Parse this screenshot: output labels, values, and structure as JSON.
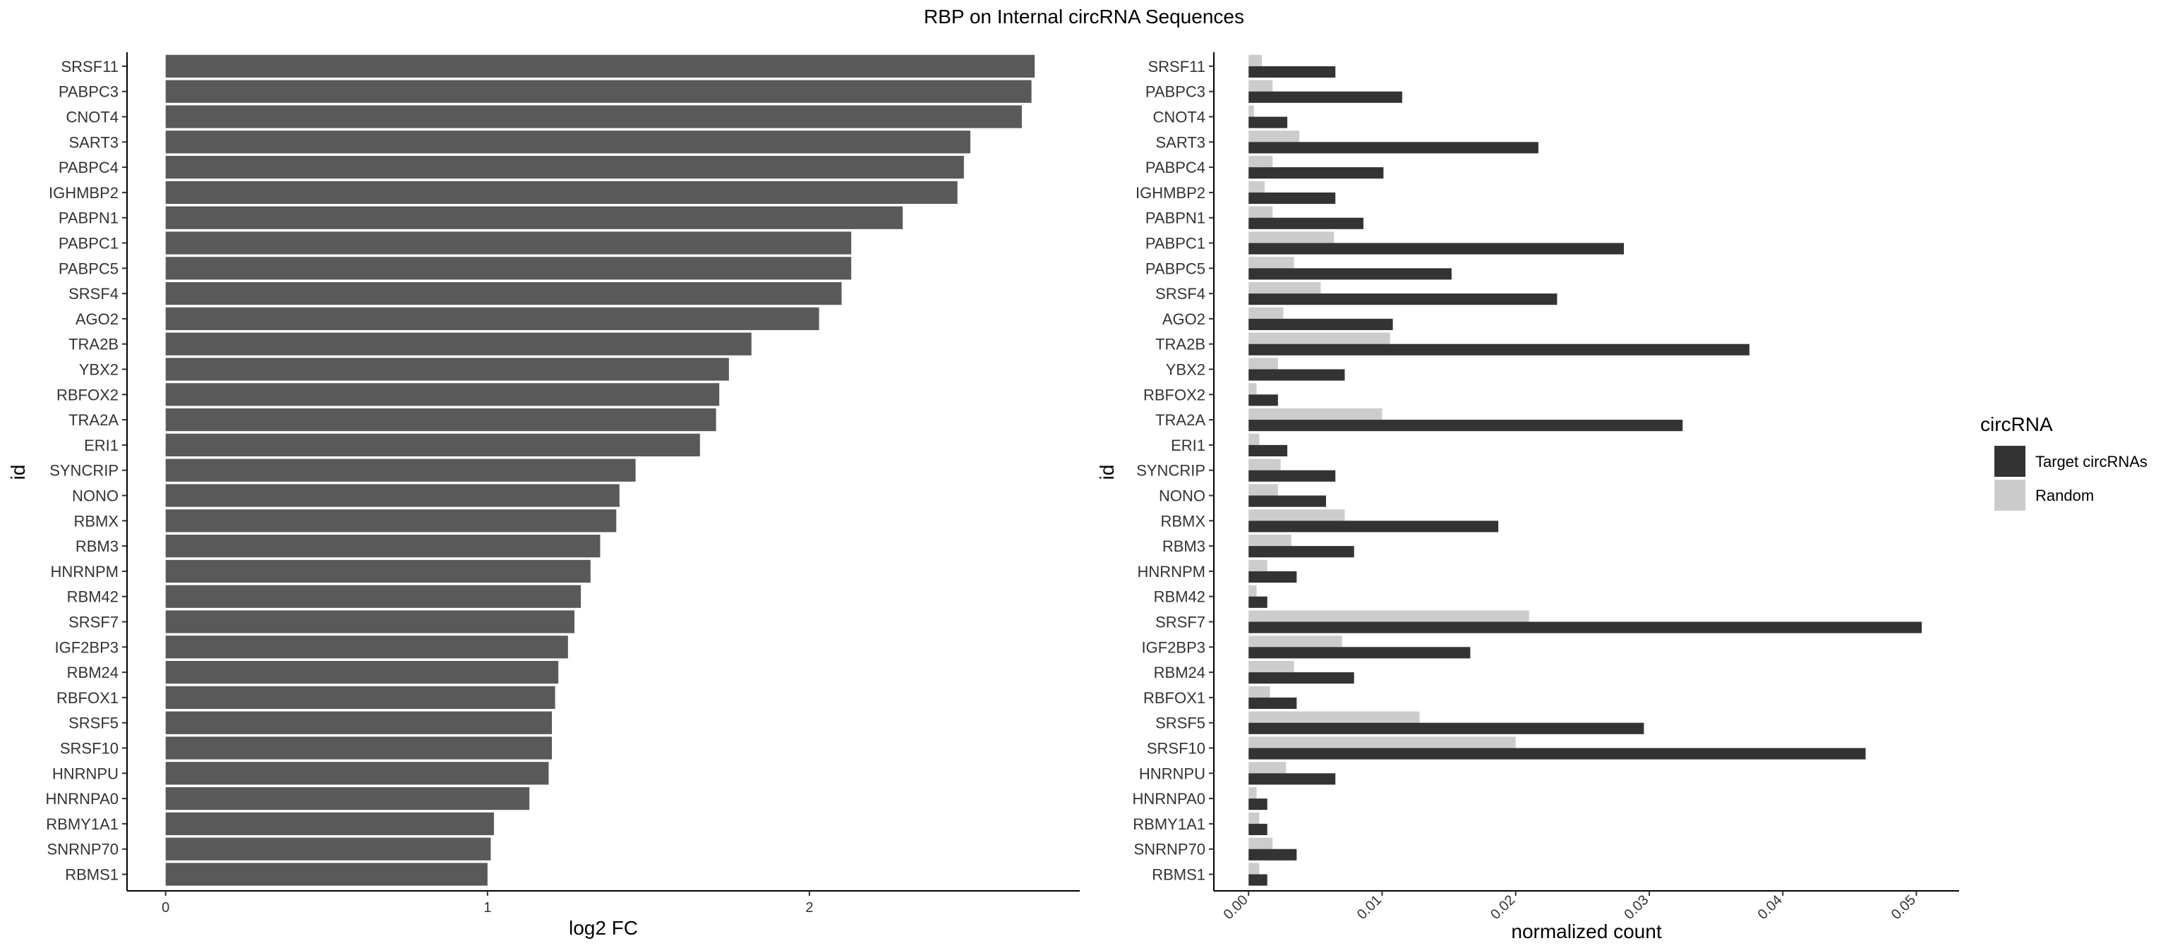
{
  "title": "RBP on Internal circRNA Sequences",
  "chart_data": [
    {
      "type": "bar",
      "orientation": "horizontal",
      "xlabel": "log2 FC",
      "ylabel": "id",
      "xlim": [
        -0.12,
        2.84
      ],
      "xticks": [
        "0",
        "1",
        "2"
      ],
      "bar_color": "#595959",
      "categories": [
        "SRSF11",
        "PABPC3",
        "CNOT4",
        "SART3",
        "PABPC4",
        "IGHMBP2",
        "PABPN1",
        "PABPC1",
        "PABPC5",
        "SRSF4",
        "AGO2",
        "TRA2B",
        "YBX2",
        "RBFOX2",
        "TRA2A",
        "ERI1",
        "SYNCRIP",
        "NONO",
        "RBMX",
        "RBM3",
        "HNRNPM",
        "RBM42",
        "SRSF7",
        "IGF2BP3",
        "RBM24",
        "RBFOX1",
        "SRSF5",
        "SRSF10",
        "HNRNPU",
        "HNRNPA0",
        "RBMY1A1",
        "SNRNP70",
        "RBMS1"
      ],
      "values": [
        2.7,
        2.69,
        2.66,
        2.5,
        2.48,
        2.46,
        2.29,
        2.13,
        2.13,
        2.1,
        2.03,
        1.82,
        1.75,
        1.72,
        1.71,
        1.66,
        1.46,
        1.41,
        1.4,
        1.35,
        1.32,
        1.29,
        1.27,
        1.25,
        1.22,
        1.21,
        1.2,
        1.2,
        1.19,
        1.13,
        1.02,
        1.01,
        1.0
      ]
    },
    {
      "type": "bar",
      "orientation": "horizontal",
      "grouped": true,
      "xlabel": "normalized count",
      "ylabel": "id",
      "xlim": [
        -0.0026,
        0.0532
      ],
      "xticks": [
        "0.00",
        "0.01",
        "0.02",
        "0.03",
        "0.04",
        "0.05"
      ],
      "legend": {
        "title": "circRNA",
        "position": "right"
      },
      "categories": [
        "SRSF11",
        "PABPC3",
        "CNOT4",
        "SART3",
        "PABPC4",
        "IGHMBP2",
        "PABPN1",
        "PABPC1",
        "PABPC5",
        "SRSF4",
        "AGO2",
        "TRA2B",
        "YBX2",
        "RBFOX2",
        "TRA2A",
        "ERI1",
        "SYNCRIP",
        "NONO",
        "RBMX",
        "RBM3",
        "HNRNPM",
        "RBM42",
        "SRSF7",
        "IGF2BP3",
        "RBM24",
        "RBFOX1",
        "SRSF5",
        "SRSF10",
        "HNRNPU",
        "HNRNPA0",
        "RBMY1A1",
        "SNRNP70",
        "RBMS1"
      ],
      "series": [
        {
          "name": "Target circRNAs",
          "color": "#333333",
          "values": [
            0.0065,
            0.0115,
            0.0029,
            0.0217,
            0.0101,
            0.0065,
            0.0086,
            0.0281,
            0.0152,
            0.0231,
            0.0108,
            0.0375,
            0.0072,
            0.0022,
            0.0325,
            0.0029,
            0.0065,
            0.0058,
            0.0187,
            0.0079,
            0.0036,
            0.0014,
            0.0504,
            0.0166,
            0.0079,
            0.0036,
            0.0296,
            0.0462,
            0.0065,
            0.0014,
            0.0014,
            0.0036,
            0.0014
          ]
        },
        {
          "name": "Random",
          "color": "#cccccc",
          "values": [
            0.001,
            0.0018,
            0.0004,
            0.0038,
            0.0018,
            0.0012,
            0.0018,
            0.0064,
            0.0034,
            0.0054,
            0.0026,
            0.0106,
            0.0022,
            0.0006,
            0.01,
            0.0008,
            0.0024,
            0.0022,
            0.0072,
            0.0032,
            0.0014,
            0.0006,
            0.021,
            0.007,
            0.0034,
            0.0016,
            0.0128,
            0.02,
            0.0028,
            0.0006,
            0.0008,
            0.0018,
            0.0008
          ]
        }
      ]
    }
  ]
}
